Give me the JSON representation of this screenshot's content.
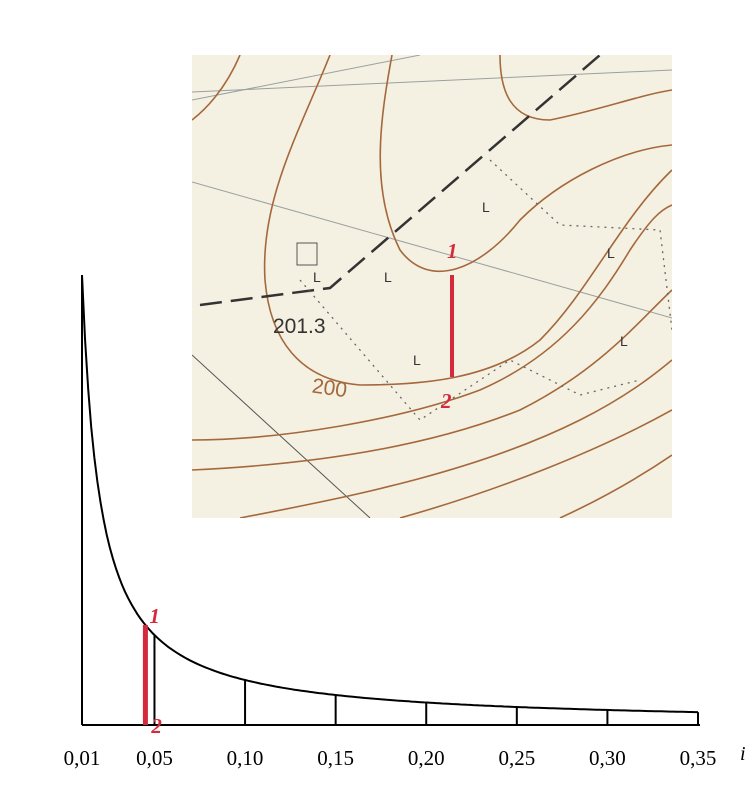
{
  "map": {
    "spot_height": "201.3",
    "contour_label": "200",
    "land_marks": [
      "L",
      "L",
      "L",
      "L",
      "L",
      "L"
    ],
    "point_1": "1",
    "point_2": "2"
  },
  "scale": {
    "ticks": [
      {
        "value": 0.01,
        "label": "0,01"
      },
      {
        "value": 0.05,
        "label": "0,05"
      },
      {
        "value": 0.1,
        "label": "0,10"
      },
      {
        "value": 0.15,
        "label": "0,15"
      },
      {
        "value": 0.2,
        "label": "0,20"
      },
      {
        "value": 0.25,
        "label": "0,25"
      },
      {
        "value": 0.3,
        "label": "0,30"
      },
      {
        "value": 0.35,
        "label": "0,35"
      }
    ],
    "axis_label": "i",
    "point_1": "1",
    "point_2": "2"
  }
}
